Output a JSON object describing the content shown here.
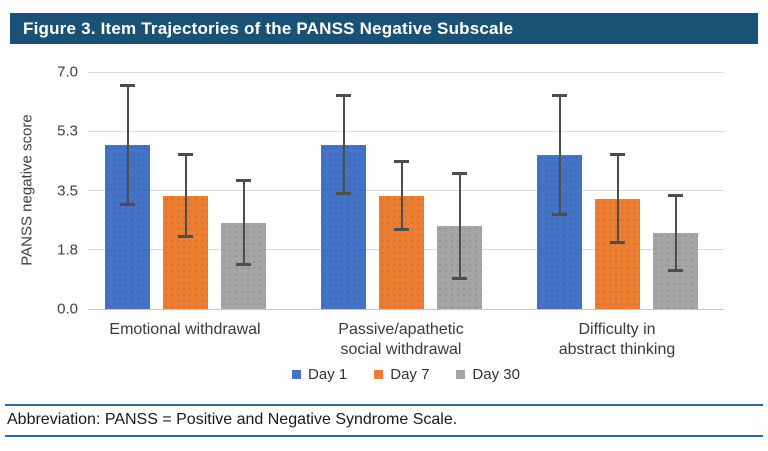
{
  "header": {
    "title": "Figure 3. Item Trajectories of the PANSS Negative Subscale",
    "bg_color": "#1A5276",
    "text_color": "#FFFFFF"
  },
  "chart_data": {
    "type": "bar",
    "title": "Figure 3. Item Trajectories of the PANSS Negative Subscale",
    "xlabel": "",
    "ylabel": "PANSS negative score",
    "ylim": [
      0,
      7
    ],
    "yticks": [
      {
        "value": 0.0,
        "label": "0.0"
      },
      {
        "value": 1.75,
        "label": "1.8"
      },
      {
        "value": 3.5,
        "label": "3.5"
      },
      {
        "value": 5.25,
        "label": "5.3"
      },
      {
        "value": 7.0,
        "label": "7.0"
      }
    ],
    "grid": true,
    "error_bars": true,
    "error_bar_color": "#4D4D4D",
    "legend_position": "bottom-center",
    "categories": [
      "Emotional withdrawal",
      "Passive/apathetic\nsocial withdrawal",
      "Difficulty in\nabstract thinking"
    ],
    "series": [
      {
        "name": "Day 1",
        "color": "#4472C4",
        "values": [
          4.85,
          4.85,
          4.55
        ],
        "errors": [
          1.75,
          1.45,
          1.75
        ]
      },
      {
        "name": "Day 7",
        "color": "#ED7D31",
        "values": [
          3.35,
          3.35,
          3.25
        ],
        "errors": [
          1.2,
          1.0,
          1.3
        ]
      },
      {
        "name": "Day 30",
        "color": "#A5A5A5",
        "values": [
          2.55,
          2.45,
          2.25
        ],
        "errors": [
          1.25,
          1.55,
          1.1
        ]
      }
    ]
  },
  "legend": {
    "items": [
      {
        "label": "Day 1",
        "color": "#4472C4"
      },
      {
        "label": "Day 7",
        "color": "#ED7D31"
      },
      {
        "label": "Day 30",
        "color": "#A5A5A5"
      }
    ]
  },
  "footer": {
    "text": "Abbreviation: PANSS = Positive and Negative Syndrome Scale.",
    "rule_color": "#2B6A9B"
  },
  "colors": {
    "gridline": "#DCDCDC",
    "baseline": "#C6C6C6",
    "tick_text": "#404040",
    "category_text": "#3A3A3A",
    "legend_text": "#333333"
  }
}
